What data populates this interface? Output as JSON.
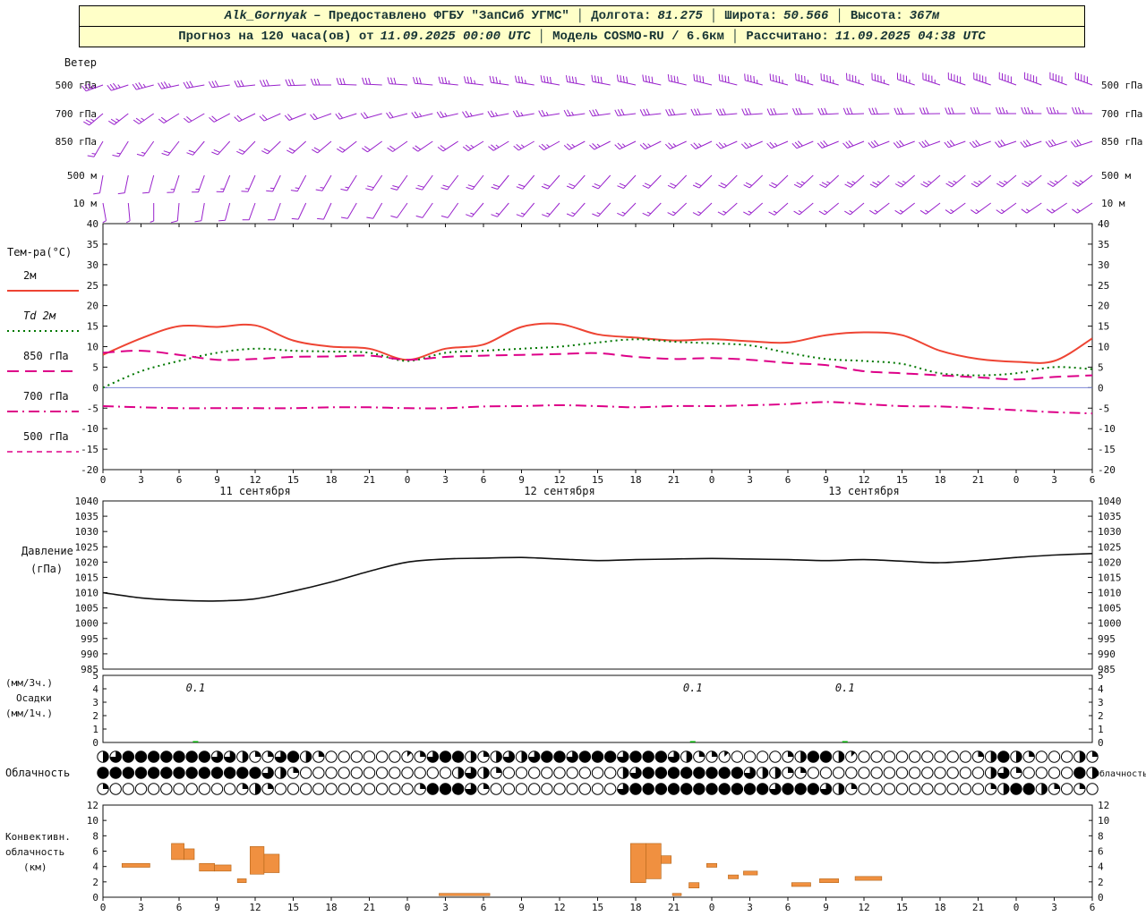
{
  "header": {
    "station": "Alk_Gornyak",
    "provider": "– Предоставлено ФГБУ \"ЗапСиб УГМС\"",
    "sep": "│",
    "lon_label": "Долгота:",
    "lon_value": "81.275",
    "lat_label": "Широта:",
    "lat_value": "50.566",
    "alt_label": "Высота:",
    "alt_value": "367м",
    "forecast_prefix": "Прогноз на 120 часа(ов) от",
    "run_time": "11.09.2025 00:00 UTC",
    "model_label": "Модель",
    "model_value": "COSMO-RU / 6.6км",
    "calc_label": "Рассчитано:",
    "calc_value": "11.09.2025 04:38 UTC"
  },
  "chart_data": {
    "type": "meteogram",
    "x": {
      "hours_end": 78,
      "hours_step": 3,
      "hour_labels": [
        "0",
        "3",
        "6",
        "9",
        "12",
        "15",
        "18",
        "21",
        "0",
        "3",
        "6",
        "9",
        "12",
        "15",
        "18",
        "21",
        "0",
        "3",
        "6",
        "9",
        "12",
        "15",
        "18",
        "21",
        "0",
        "3",
        "6"
      ],
      "date_labels": [
        "11 сентября",
        "12 сентября",
        "13 сентября"
      ],
      "date_center_hours": [
        12,
        36,
        60
      ]
    },
    "wind": {
      "panel_label": "Ветер",
      "color": "#9922cc",
      "hours_step": 2,
      "levels": [
        {
          "label": "500 гПа",
          "dirs": [
            250,
            252,
            255,
            258,
            260,
            262,
            264,
            266,
            268,
            270,
            272,
            273,
            274,
            275,
            276,
            277,
            278,
            279,
            280,
            280,
            281,
            282,
            282,
            283,
            284,
            284,
            285,
            285,
            286,
            286,
            287,
            287,
            288,
            288,
            289,
            289,
            290,
            290,
            290,
            290
          ],
          "speeds": [
            18,
            18,
            17,
            17,
            16,
            16,
            15,
            15,
            14,
            14,
            15,
            15,
            16,
            16,
            17,
            17,
            18,
            18,
            19,
            19,
            20,
            20,
            20,
            21,
            21,
            21,
            22,
            22,
            22,
            22,
            23,
            23,
            23,
            23,
            24,
            24,
            24,
            24,
            24,
            24
          ]
        },
        {
          "label": "700 гПа",
          "dirs": [
            230,
            232,
            235,
            238,
            240,
            242,
            244,
            246,
            248,
            250,
            252,
            254,
            255,
            256,
            257,
            258,
            259,
            260,
            261,
            262,
            262,
            263,
            264,
            264,
            265,
            265,
            266,
            266,
            267,
            267,
            268,
            268,
            268,
            269,
            269,
            270,
            270,
            270,
            270,
            270
          ],
          "speeds": [
            12,
            12,
            12,
            11,
            11,
            11,
            10,
            10,
            10,
            10,
            11,
            11,
            11,
            12,
            12,
            12,
            13,
            13,
            13,
            13,
            14,
            14,
            14,
            14,
            14,
            15,
            15,
            15,
            15,
            15,
            16,
            16,
            16,
            16,
            16,
            16,
            17,
            17,
            17,
            17
          ]
        },
        {
          "label": "850 гПа",
          "dirs": [
            210,
            212,
            215,
            218,
            220,
            222,
            224,
            226,
            228,
            230,
            232,
            234,
            235,
            236,
            237,
            238,
            239,
            240,
            241,
            242,
            243,
            244,
            244,
            245,
            245,
            246,
            246,
            247,
            247,
            248,
            248,
            249,
            249,
            250,
            250,
            250,
            251,
            251,
            252,
            252
          ],
          "speeds": [
            8,
            8,
            8,
            9,
            9,
            9,
            10,
            10,
            10,
            10,
            10,
            11,
            11,
            11,
            11,
            12,
            12,
            12,
            12,
            12,
            12,
            12,
            13,
            13,
            13,
            13,
            13,
            13,
            14,
            14,
            14,
            14,
            14,
            14,
            14,
            14,
            15,
            15,
            15,
            15
          ]
        },
        {
          "label": "500 м",
          "dirs": [
            190,
            192,
            195,
            198,
            200,
            202,
            204,
            206,
            208,
            210,
            212,
            214,
            215,
            216,
            217,
            218,
            219,
            220,
            221,
            222,
            222,
            223,
            224,
            224,
            225,
            225,
            226,
            226,
            227,
            227,
            228,
            228,
            229,
            229,
            230,
            230,
            230,
            231,
            231,
            232
          ],
          "speeds": [
            6,
            6,
            6,
            7,
            7,
            7,
            8,
            8,
            8,
            8,
            8,
            9,
            9,
            9,
            9,
            10,
            10,
            10,
            10,
            10,
            10,
            10,
            11,
            11,
            11,
            11,
            11,
            11,
            12,
            12,
            12,
            12,
            12,
            12,
            12,
            12,
            12,
            12,
            12,
            12
          ]
        },
        {
          "label": "10 м",
          "dirs": [
            170,
            175,
            180,
            185,
            190,
            195,
            200,
            200,
            205,
            205,
            210,
            210,
            215,
            215,
            215,
            220,
            220,
            220,
            220,
            222,
            222,
            224,
            224,
            226,
            226,
            228,
            228,
            228,
            230,
            230,
            230,
            232,
            232,
            232,
            234,
            234,
            234,
            236,
            236,
            236
          ],
          "speeds": [
            2,
            3,
            3,
            4,
            4,
            5,
            5,
            5,
            5,
            6,
            6,
            6,
            6,
            6,
            6,
            7,
            7,
            7,
            7,
            7,
            7,
            8,
            8,
            8,
            8,
            8,
            8,
            8,
            8,
            8,
            8,
            8,
            8,
            8,
            8,
            8,
            7,
            7,
            7,
            7
          ]
        }
      ]
    },
    "temperature": {
      "panel_label": "Тем-ра(°C)",
      "ymin": -20,
      "ymax": 40,
      "ystep": 5,
      "series": [
        {
          "name": "2м",
          "color": "#ee4433",
          "style": "solid",
          "values": [
            8,
            12,
            15,
            14.8,
            15.2,
            11.5,
            10,
            9.5,
            6.8,
            9.5,
            10.5,
            14.8,
            15.5,
            13,
            12.2,
            11.5,
            11.8,
            11.3,
            11,
            12.8,
            13.5,
            12.8,
            9,
            7,
            6.3,
            6.5,
            12
          ]
        },
        {
          "name": "Td 2м",
          "color": "#007700",
          "style": "dotted",
          "values": [
            0,
            4,
            6.5,
            8.5,
            9.5,
            9,
            8.8,
            8.5,
            6.5,
            8.5,
            9,
            9.5,
            10,
            11,
            11.8,
            11.2,
            10.8,
            10.3,
            8.5,
            7,
            6.5,
            5.8,
            3.5,
            3,
            3.5,
            5,
            4.5
          ]
        },
        {
          "name": "850 гПа",
          "color": "#dd0088",
          "style": "longdash",
          "values": [
            8.5,
            9,
            8,
            6.8,
            7,
            7.5,
            7.6,
            7.8,
            6.8,
            7.5,
            7.8,
            8,
            8.2,
            8.4,
            7.5,
            7,
            7.2,
            6.8,
            6,
            5.5,
            4,
            3.5,
            3,
            2.5,
            2,
            2.6,
            3
          ]
        },
        {
          "name": "700 гПа",
          "color": "#dd0088",
          "style": "dashdot",
          "values": [
            -4.5,
            -4.8,
            -5,
            -5,
            -5,
            -5,
            -4.8,
            -4.8,
            -5,
            -5,
            -4.6,
            -4.5,
            -4.3,
            -4.5,
            -4.8,
            -4.5,
            -4.5,
            -4.3,
            -4,
            -3.5,
            -4,
            -4.5,
            -4.6,
            -5,
            -5.5,
            -6,
            -6.3
          ]
        },
        {
          "name": "500 гПа",
          "color": "#dd0088",
          "style": "shortdash",
          "values": []
        }
      ]
    },
    "pressure": {
      "labels": [
        "Давление",
        "(гПа)"
      ],
      "ymin": 985,
      "ymax": 1040,
      "ystep": 5,
      "color": "#111111",
      "values": [
        1010,
        1008.3,
        1007.5,
        1007.3,
        1008,
        1010.5,
        1013.5,
        1017,
        1020,
        1021,
        1021.3,
        1021.5,
        1021,
        1020.5,
        1020.8,
        1021,
        1021.2,
        1021,
        1020.8,
        1020.5,
        1020.8,
        1020.3,
        1019.8,
        1020.5,
        1021.5,
        1022.3,
        1022.8
      ]
    },
    "precipitation": {
      "labels": [
        "(мм/3ч.)",
        "Осадки",
        "(мм/1ч.)"
      ],
      "ymin": 0,
      "ymax": 5,
      "color": "#00aa00",
      "events": [
        {
          "hour": 7.3,
          "amount": "0.1"
        },
        {
          "hour": 46.5,
          "amount": "0.1"
        },
        {
          "hour": 58.5,
          "amount": "0.1"
        }
      ]
    },
    "cloudiness": {
      "label": "Облачность",
      "rows": [
        [
          4,
          6,
          8,
          8,
          8,
          8,
          8,
          8,
          8,
          6,
          6,
          4,
          2,
          2,
          6,
          8,
          4,
          2,
          0,
          0,
          0,
          0,
          0,
          0,
          1,
          2,
          6,
          8,
          8,
          4,
          2,
          4,
          6,
          4,
          6,
          8,
          8,
          6,
          8,
          8,
          8,
          6,
          8,
          8,
          8,
          6,
          4,
          2,
          2,
          1,
          0,
          0,
          0,
          0,
          2,
          4,
          8,
          8,
          4,
          1,
          0,
          0,
          0,
          0,
          0,
          0,
          0,
          0,
          0,
          2,
          4,
          8,
          4,
          2,
          0,
          0,
          0,
          4,
          2
        ],
        [
          8,
          8,
          8,
          8,
          8,
          8,
          8,
          8,
          8,
          8,
          8,
          8,
          8,
          6,
          4,
          2,
          0,
          0,
          0,
          0,
          0,
          0,
          0,
          0,
          0,
          0,
          0,
          0,
          4,
          6,
          4,
          2,
          0,
          0,
          0,
          0,
          0,
          0,
          0,
          0,
          0,
          4,
          6,
          8,
          8,
          8,
          8,
          8,
          8,
          8,
          8,
          6,
          4,
          4,
          2,
          2,
          0,
          0,
          0,
          0,
          0,
          0,
          0,
          0,
          0,
          0,
          0,
          0,
          0,
          0,
          4,
          6,
          2,
          0,
          0,
          0,
          0,
          8,
          4
        ],
        [
          2,
          0,
          0,
          0,
          0,
          0,
          0,
          0,
          0,
          0,
          0,
          2,
          4,
          2,
          0,
          0,
          0,
          0,
          0,
          0,
          0,
          0,
          0,
          0,
          0,
          2,
          8,
          8,
          8,
          6,
          2,
          0,
          0,
          0,
          0,
          0,
          0,
          0,
          0,
          0,
          0,
          6,
          8,
          8,
          8,
          8,
          8,
          8,
          8,
          8,
          8,
          8,
          8,
          6,
          8,
          8,
          8,
          6,
          4,
          2,
          0,
          0,
          0,
          0,
          0,
          0,
          0,
          0,
          0,
          0,
          2,
          4,
          8,
          8,
          4,
          2,
          0,
          2,
          0
        ]
      ]
    },
    "convective": {
      "labels": [
        "Конвективн.",
        "облачность",
        "(км)"
      ],
      "ymin": 0,
      "ymax": 12,
      "ystep": 2,
      "color": "#f09040",
      "bars": [
        [
          1.5,
          3.7,
          3.9,
          4.4
        ],
        [
          5.4,
          6.4,
          4.9,
          7.0
        ],
        [
          6.4,
          7.2,
          4.9,
          6.3
        ],
        [
          7.6,
          8.8,
          3.4,
          4.4
        ],
        [
          8.8,
          10.1,
          3.4,
          4.2
        ],
        [
          10.6,
          11.3,
          1.9,
          2.4
        ],
        [
          11.6,
          12.7,
          3.0,
          6.6
        ],
        [
          12.7,
          13.9,
          3.2,
          5.6
        ],
        [
          26.5,
          30.5,
          0.2,
          0.5
        ],
        [
          41.6,
          42.8,
          1.9,
          7.0
        ],
        [
          42.8,
          44.0,
          2.4,
          7.0
        ],
        [
          44.0,
          44.8,
          4.4,
          5.4
        ],
        [
          44.9,
          45.6,
          0.2,
          0.5
        ],
        [
          46.2,
          47.0,
          1.2,
          1.9
        ],
        [
          47.6,
          48.4,
          3.9,
          4.4
        ],
        [
          49.3,
          50.1,
          2.4,
          2.9
        ],
        [
          50.5,
          51.6,
          2.9,
          3.4
        ],
        [
          54.3,
          55.8,
          1.4,
          1.9
        ],
        [
          56.5,
          58.0,
          1.9,
          2.4
        ],
        [
          59.3,
          61.4,
          2.2,
          2.7
        ]
      ]
    }
  }
}
